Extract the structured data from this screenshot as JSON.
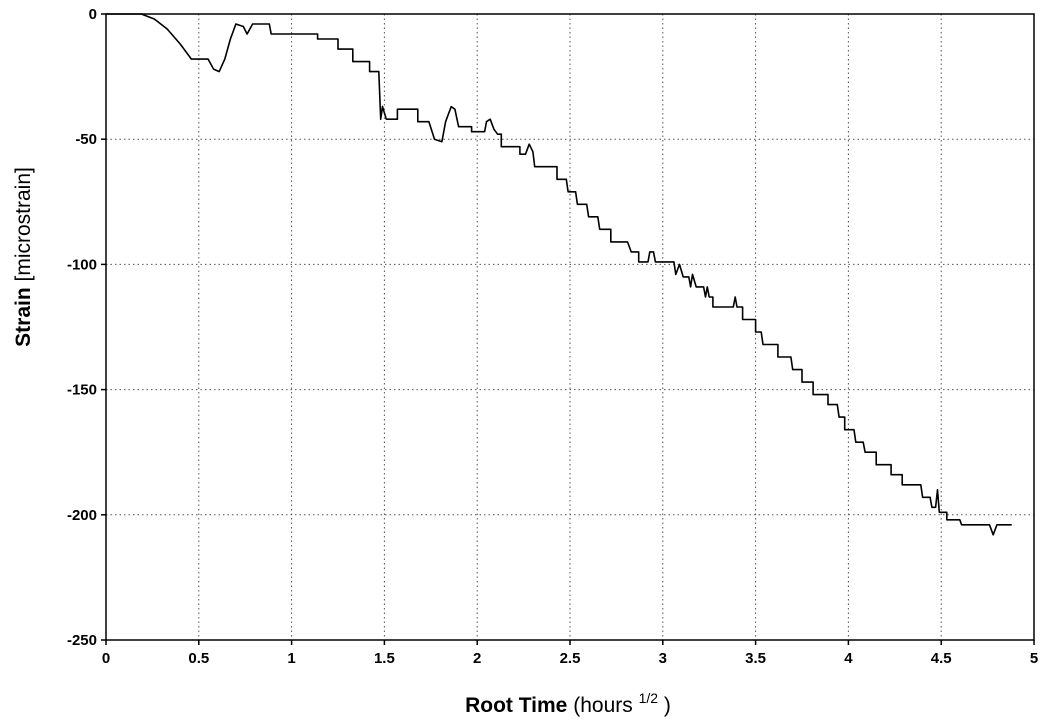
{
  "chart_data": {
    "type": "line",
    "xlabel": {
      "bold": "Root Time",
      "rest": "(hours",
      "superscript": "1/2",
      "close": ")"
    },
    "ylabel": {
      "bold": "Strain",
      "rest": "[microstrain]"
    },
    "xlim": [
      0,
      5
    ],
    "ylim": [
      -250,
      0
    ],
    "x_ticks": [
      0,
      0.5,
      1,
      1.5,
      2,
      2.5,
      3,
      3.5,
      4,
      4.5,
      5
    ],
    "x_tick_labels": [
      "0",
      "0.5",
      "1",
      "1.5",
      "2",
      "2.5",
      "3",
      "3.5",
      "4",
      "4.5",
      "5"
    ],
    "y_ticks": [
      0,
      -50,
      -100,
      -150,
      -200,
      -250
    ],
    "y_tick_labels": [
      "0",
      "-50",
      "-100",
      "-150",
      "-200",
      "-250"
    ],
    "grid": true,
    "line_color": "#000000",
    "series": [
      {
        "points": [
          [
            0.19,
            0
          ],
          [
            0.26,
            -2
          ],
          [
            0.33,
            -6
          ],
          [
            0.4,
            -12
          ],
          [
            0.46,
            -18
          ],
          [
            0.55,
            -18
          ],
          [
            0.58,
            -22
          ],
          [
            0.61,
            -23
          ],
          [
            0.64,
            -18
          ],
          [
            0.67,
            -10
          ],
          [
            0.7,
            -4
          ],
          [
            0.74,
            -5
          ],
          [
            0.76,
            -8
          ],
          [
            0.79,
            -4
          ],
          [
            0.88,
            -4
          ],
          [
            0.89,
            -8
          ],
          [
            1.14,
            -8
          ],
          [
            1.14,
            -10
          ],
          [
            1.25,
            -10
          ],
          [
            1.25,
            -14
          ],
          [
            1.33,
            -14
          ],
          [
            1.33,
            -19
          ],
          [
            1.42,
            -19
          ],
          [
            1.42,
            -23
          ],
          [
            1.47,
            -23
          ],
          [
            1.48,
            -42
          ],
          [
            1.49,
            -37
          ],
          [
            1.51,
            -42
          ],
          [
            1.57,
            -42
          ],
          [
            1.57,
            -38
          ],
          [
            1.68,
            -38
          ],
          [
            1.68,
            -43
          ],
          [
            1.74,
            -43
          ],
          [
            1.77,
            -50
          ],
          [
            1.81,
            -51
          ],
          [
            1.83,
            -43
          ],
          [
            1.86,
            -37
          ],
          [
            1.88,
            -38
          ],
          [
            1.9,
            -45
          ],
          [
            1.97,
            -45
          ],
          [
            1.97,
            -47
          ],
          [
            2.04,
            -47
          ],
          [
            2.05,
            -43
          ],
          [
            2.07,
            -42
          ],
          [
            2.09,
            -46
          ],
          [
            2.11,
            -48
          ],
          [
            2.13,
            -48
          ],
          [
            2.13,
            -53
          ],
          [
            2.23,
            -53
          ],
          [
            2.23,
            -56
          ],
          [
            2.26,
            -56
          ],
          [
            2.28,
            -52
          ],
          [
            2.3,
            -55
          ],
          [
            2.31,
            -61
          ],
          [
            2.43,
            -61
          ],
          [
            2.43,
            -66
          ],
          [
            2.48,
            -66
          ],
          [
            2.49,
            -71
          ],
          [
            2.53,
            -71
          ],
          [
            2.54,
            -76
          ],
          [
            2.59,
            -76
          ],
          [
            2.6,
            -81
          ],
          [
            2.65,
            -81
          ],
          [
            2.66,
            -86
          ],
          [
            2.72,
            -86
          ],
          [
            2.72,
            -91
          ],
          [
            2.81,
            -91
          ],
          [
            2.83,
            -95
          ],
          [
            2.87,
            -95
          ],
          [
            2.87,
            -99
          ],
          [
            2.92,
            -99
          ],
          [
            2.93,
            -95
          ],
          [
            2.95,
            -95
          ],
          [
            2.96,
            -99
          ],
          [
            3.06,
            -99
          ],
          [
            3.07,
            -104
          ],
          [
            3.09,
            -100
          ],
          [
            3.11,
            -105
          ],
          [
            3.14,
            -105
          ],
          [
            3.15,
            -109
          ],
          [
            3.16,
            -104
          ],
          [
            3.18,
            -109
          ],
          [
            3.22,
            -109
          ],
          [
            3.23,
            -113
          ],
          [
            3.24,
            -109
          ],
          [
            3.25,
            -113
          ],
          [
            3.27,
            -113
          ],
          [
            3.27,
            -117
          ],
          [
            3.38,
            -117
          ],
          [
            3.39,
            -113
          ],
          [
            3.4,
            -117
          ],
          [
            3.43,
            -117
          ],
          [
            3.43,
            -122
          ],
          [
            3.5,
            -122
          ],
          [
            3.5,
            -127
          ],
          [
            3.53,
            -127
          ],
          [
            3.54,
            -132
          ],
          [
            3.62,
            -132
          ],
          [
            3.62,
            -137
          ],
          [
            3.69,
            -137
          ],
          [
            3.7,
            -142
          ],
          [
            3.75,
            -142
          ],
          [
            3.75,
            -147
          ],
          [
            3.81,
            -147
          ],
          [
            3.81,
            -152
          ],
          [
            3.89,
            -152
          ],
          [
            3.89,
            -156
          ],
          [
            3.94,
            -156
          ],
          [
            3.95,
            -161
          ],
          [
            3.98,
            -161
          ],
          [
            3.98,
            -166
          ],
          [
            4.03,
            -166
          ],
          [
            4.04,
            -171
          ],
          [
            4.08,
            -171
          ],
          [
            4.09,
            -175
          ],
          [
            4.15,
            -175
          ],
          [
            4.15,
            -180
          ],
          [
            4.23,
            -180
          ],
          [
            4.23,
            -184
          ],
          [
            4.29,
            -184
          ],
          [
            4.29,
            -188
          ],
          [
            4.39,
            -188
          ],
          [
            4.4,
            -193
          ],
          [
            4.44,
            -193
          ],
          [
            4.45,
            -197
          ],
          [
            4.47,
            -197
          ],
          [
            4.48,
            -190
          ],
          [
            4.49,
            -199
          ],
          [
            4.53,
            -199
          ],
          [
            4.53,
            -202
          ],
          [
            4.6,
            -202
          ],
          [
            4.61,
            -204
          ],
          [
            4.76,
            -204
          ],
          [
            4.78,
            -208
          ],
          [
            4.8,
            -204
          ],
          [
            4.88,
            -204
          ]
        ]
      }
    ]
  }
}
